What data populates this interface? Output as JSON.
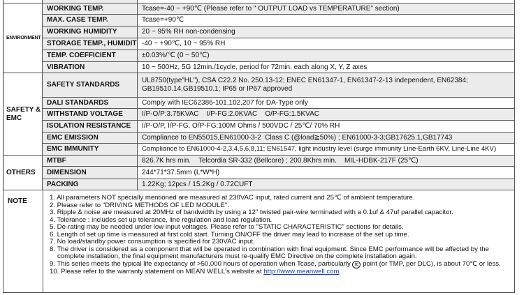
{
  "sections": [
    {
      "group": "ENVIRONMENT",
      "rows": [
        {
          "label": "WORKING TEMP.",
          "value": "Tcase=-40 ~ +90℃ (Please refer to \" OUTPUT LOAD vs TEMPERATURE\" section)"
        },
        {
          "label": "MAX. CASE TEMP.",
          "value": "Tcase=+90℃"
        },
        {
          "label": "WORKING HUMIDITY",
          "value": "20 ~ 95% RH non-condensing"
        },
        {
          "label": "STORAGE TEMP., HUMIDITY",
          "value": "-40 ~ +90℃, 10 ~ 95% RH"
        },
        {
          "label": "TEMP. COEFFICIENT",
          "value": "±0.03%/℃ (0 ~ 50℃)"
        },
        {
          "label": "VIBRATION",
          "value": "10 ~ 500Hz, 5G 12min./1cycle, period for  72min. each along X, Y, Z axes"
        }
      ]
    },
    {
      "group": "SAFETY & EMC",
      "rows": [
        {
          "label": "SAFETY STANDARDS",
          "value": "UL8750(type\"HL\"), CSA C22.2 No. 250.13-12; ENEC EN61347-1, EN61347-2-13 independent, EN62384;",
          "value2": "GB19510.14,GB19510.1; IP65 or IP67 approved"
        },
        {
          "label": "DALI STANDARDS",
          "value": "Compiy with IEC62386-101,102,207 for DA-Type only"
        },
        {
          "label": "WITHSTAND VOLTAGE",
          "value": "I/P-O/P:3.75KVAC    I/P-FG:2.0KVAC    O/P-FG:1.5KVAC"
        },
        {
          "label": "ISOLATION RESISTANCE",
          "value": "I/P-O/P, I/P-FG, O/P-FG:100M Ohms / 500VDC / 25℃/ 70% RH"
        },
        {
          "label": "EMC EMISSION",
          "value": "Compliance to EN55015,EN61000-3-2  Class C (@load≧50%) ; EN61000-3-3;GB17625.1,GB17743"
        },
        {
          "label": "EMC IMMUNITY",
          "value": "Compliance to EN61000-4-2,3,4,5,6,8,11; EN61547, light industry level (surge immunity Line-Earth 6KV, Line-Line 4KV)"
        }
      ]
    },
    {
      "group": "OTHERS",
      "rows": [
        {
          "label": "MTBF",
          "value": "826.7K hrs min.    Telcordia SR-332 (Bellcore) ; 200.8Khrs min.    MIL-HDBK-217F (25℃)"
        },
        {
          "label": "DIMENSION",
          "value": "244*71*37.5mm (L*W*H)"
        },
        {
          "label": "PACKING",
          "value": "1.22Kg; 12pcs / 15.2Kg / 0.72CUFT"
        }
      ]
    }
  ],
  "note": {
    "label": "NOTE",
    "items": [
      "1. All parameters NOT specially mentioned are measured at 230VAC input, rated current and 25℃ of ambient temperature.",
      "2. Please refer to \"DRIVING METHODS OF LED MODULE\".",
      "3. Ripple & noise are measured at 20MHz of bandwidth by using a 12\" twisted pair-wire terminated with a 0.1uf & 47uf parallel capacitor.",
      "4. Tolerance : includes set up tolerance, line regulation and load regulation.",
      "5. De-rating may be needed under low input voltages. Please refer to \"STATIC CHARACTERISTIC\" sections for details.",
      "6. Length of set up time is measured at first cold start. Turning ON/OFF the driver may lead to increase of the set up time.",
      "7. No load/standby power consumption is specified for 230VAC input.",
      "8. The driver is considered as a component that will be operated in combination with final equipment. Since EMC performance will be affected by the",
      "complete installation, the final equipment manufacturers must re-qualify EMC Directive on the complete installation again."
    ],
    "item9_pre": "9. This series meets the typical life expectancy of >50,000 hours of operation when Tcase, particularly ",
    "item9_tc": "tc",
    "item9_post": " point (or TMP, per DLC), is about 70℃ or less.",
    "item10_pre": "10. Please refer to the warranty statement on MEAN WELL's website at ",
    "item10_link": "http://www.meanwell.com"
  }
}
